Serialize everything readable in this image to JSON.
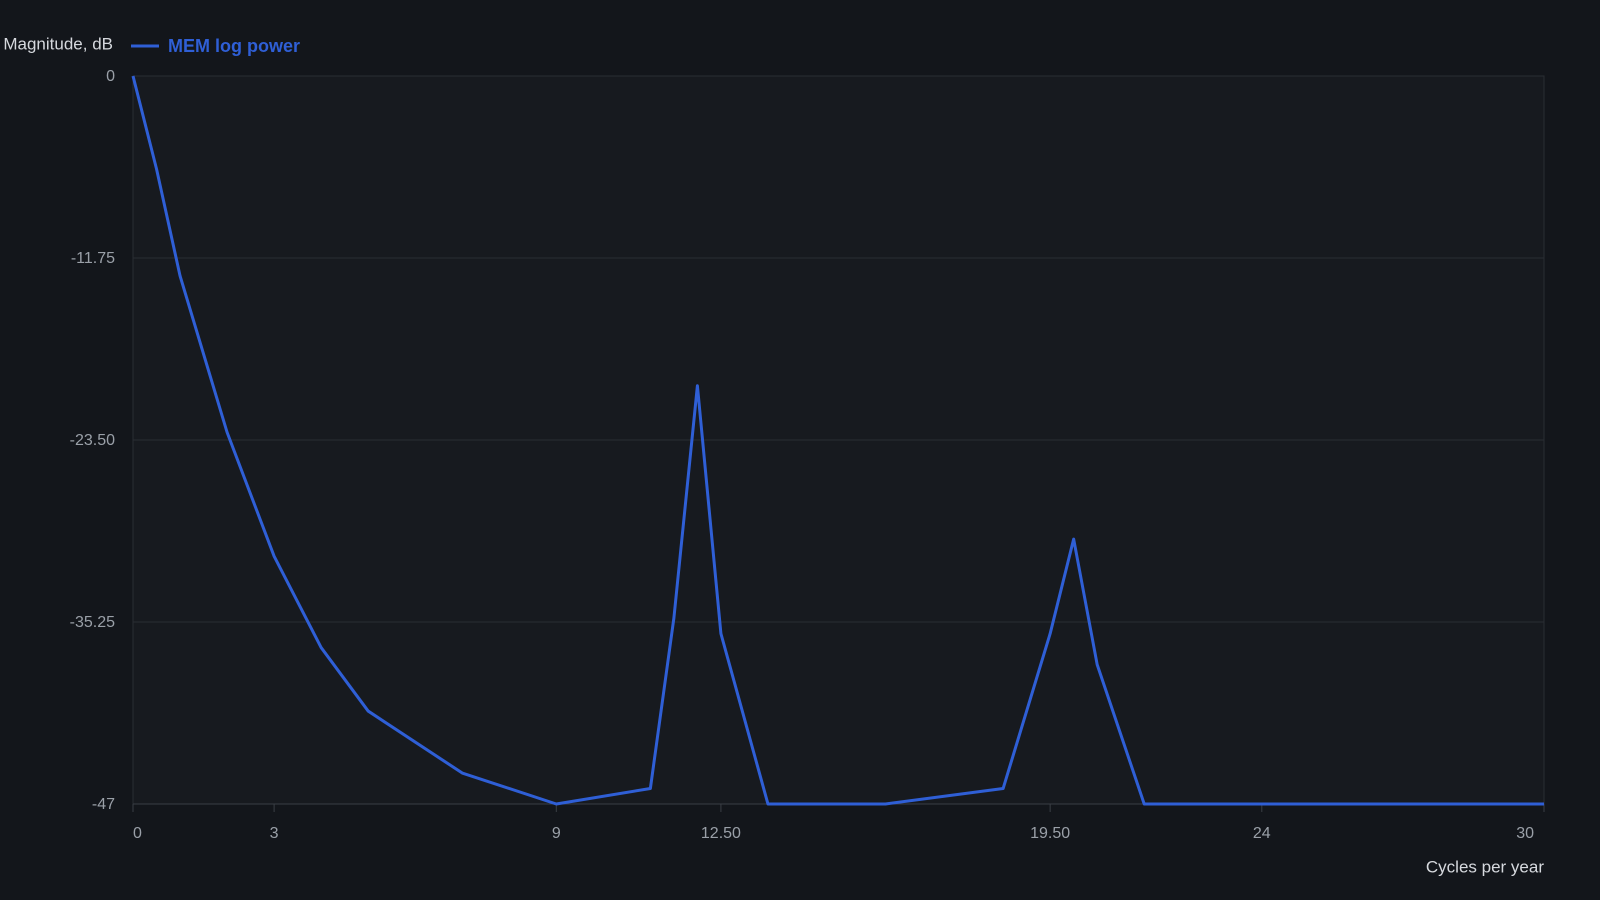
{
  "chart_data": {
    "type": "line",
    "y_label": "Magnitude, dB",
    "x_label": "Cycles per year",
    "x": [
      0,
      0.5,
      1,
      2,
      3,
      4,
      5,
      7,
      9,
      11,
      11.5,
      12,
      12.5,
      13.5,
      16,
      18.5,
      19.5,
      20,
      20.5,
      21.5,
      24,
      30
    ],
    "series": [
      {
        "name": "MEM log power",
        "color": "#2f5fd6",
        "values": [
          0,
          -6,
          -12.9,
          -23,
          -31,
          -36.9,
          -41,
          -45,
          -47,
          -46,
          -35,
          -20,
          -36,
          -47,
          -47,
          -46,
          -36,
          -29.9,
          -38,
          -47,
          -47,
          -47
        ]
      }
    ],
    "xlim": [
      0,
      30
    ],
    "xticks": [
      0,
      3,
      9,
      {
        "value": 12.5,
        "label": "12.50"
      },
      {
        "value": 19.5,
        "label": "19.50"
      },
      24,
      30
    ],
    "ylim": [
      -47,
      0
    ],
    "yticks": [
      0,
      -11.75,
      {
        "value": -23.5,
        "label": "-23.50"
      },
      -35.25,
      -47
    ],
    "grid": true
  }
}
